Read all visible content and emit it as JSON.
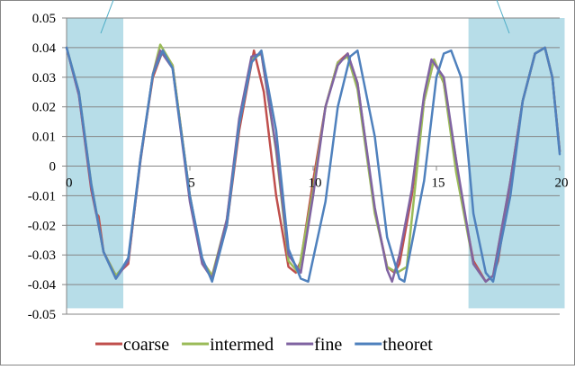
{
  "chart_data": {
    "type": "line",
    "title": "",
    "xlabel": "",
    "ylabel": "",
    "xlim": [
      0,
      20
    ],
    "ylim": [
      -0.05,
      0.05
    ],
    "x_ticks": [
      0,
      5,
      10,
      15,
      20
    ],
    "x_tick_labels": [
      "0",
      "5",
      "10",
      "15",
      "20"
    ],
    "y_ticks": [
      0.05,
      0.04,
      0.03,
      0.02,
      0.01,
      0,
      -0.01,
      -0.02,
      -0.03,
      -0.04,
      -0.05
    ],
    "y_tick_labels": [
      "0.05",
      "0.04",
      "0.03",
      "0.02",
      "0.01",
      "0",
      "-0.01",
      "-0.02",
      "-0.03",
      "-0.04",
      "-0.05"
    ],
    "grid": {
      "horizontal": true,
      "vertical": false
    },
    "legend_position": "bottom",
    "highlight_regions": [
      {
        "x_range": [
          0,
          2.3
        ],
        "y_range": [
          -0.048,
          0.05
        ],
        "color": "#b7dde8"
      },
      {
        "x_range": [
          16.3,
          20.2
        ],
        "y_range": [
          -0.048,
          0.05
        ],
        "color": "#b7dde8"
      }
    ],
    "series": [
      {
        "name": "coarse",
        "color": "#c0504d",
        "x": [
          0.0,
          0.5,
          1.0,
          1.2,
          1.3,
          1.5,
          2.0,
          2.5,
          3.0,
          3.5,
          3.9,
          4.3,
          5.0,
          5.5,
          5.9,
          6.5,
          7.0,
          7.6,
          8.0,
          8.5,
          9.0,
          9.3,
          9.5,
          10.0,
          10.5,
          11.0,
          11.4,
          11.8,
          12.5,
          13.0,
          13.3,
          13.5,
          14.0,
          14.5,
          14.9,
          15.3,
          15.8,
          16.0,
          16.5,
          17.0,
          17.3,
          17.5,
          18.0,
          18.5,
          19.0,
          19.4,
          19.7,
          20.0
        ],
        "y": [
          0.04,
          0.024,
          -0.008,
          -0.016,
          -0.017,
          -0.029,
          -0.037,
          -0.033,
          0.003,
          0.03,
          0.039,
          0.034,
          -0.01,
          -0.032,
          -0.037,
          -0.02,
          0.012,
          0.039,
          0.025,
          -0.01,
          -0.034,
          -0.036,
          -0.032,
          -0.005,
          0.02,
          0.035,
          0.038,
          0.028,
          -0.015,
          -0.034,
          -0.036,
          -0.033,
          -0.01,
          0.022,
          0.036,
          0.028,
          0.002,
          -0.01,
          -0.032,
          -0.039,
          -0.037,
          -0.032,
          -0.005,
          0.022,
          0.038,
          0.04,
          0.03,
          0.005
        ]
      },
      {
        "name": "intermed",
        "color": "#9bbb59",
        "x": [
          0.0,
          0.5,
          1.0,
          1.5,
          2.0,
          2.5,
          3.0,
          3.5,
          3.8,
          4.3,
          5.0,
          5.5,
          5.9,
          6.5,
          7.0,
          7.5,
          7.9,
          8.5,
          9.0,
          9.4,
          10.0,
          10.5,
          11.0,
          11.4,
          11.8,
          12.5,
          13.0,
          13.4,
          13.8,
          14.5,
          14.9,
          15.3,
          15.8,
          16.5,
          17.0,
          17.3,
          18.0,
          18.5,
          19.0,
          19.4,
          19.7,
          20.0
        ],
        "y": [
          0.04,
          0.025,
          -0.006,
          -0.029,
          -0.037,
          -0.032,
          0.002,
          0.031,
          0.041,
          0.034,
          -0.01,
          -0.032,
          -0.037,
          -0.018,
          0.014,
          0.036,
          0.038,
          0.005,
          -0.032,
          -0.036,
          -0.008,
          0.02,
          0.035,
          0.037,
          0.026,
          -0.016,
          -0.034,
          -0.036,
          -0.034,
          0.022,
          0.036,
          0.028,
          -0.002,
          -0.033,
          -0.039,
          -0.037,
          -0.005,
          0.022,
          0.038,
          0.04,
          0.03,
          0.005
        ]
      },
      {
        "name": "fine",
        "color": "#8064a2",
        "x": [
          0.0,
          0.5,
          1.0,
          1.5,
          2.0,
          2.5,
          3.0,
          3.5,
          3.8,
          4.3,
          5.0,
          5.5,
          5.9,
          6.5,
          7.0,
          7.5,
          7.9,
          8.5,
          9.0,
          9.5,
          10.0,
          10.5,
          11.0,
          11.4,
          11.8,
          12.5,
          13.0,
          13.2,
          13.5,
          14.0,
          14.5,
          14.8,
          15.3,
          15.8,
          16.5,
          17.0,
          17.3,
          18.0,
          18.5,
          19.0,
          19.4,
          19.7,
          20.0
        ],
        "y": [
          0.04,
          0.024,
          -0.007,
          -0.029,
          -0.038,
          -0.032,
          0.002,
          0.031,
          0.039,
          0.033,
          -0.012,
          -0.033,
          -0.038,
          -0.018,
          0.016,
          0.037,
          0.038,
          0.006,
          -0.03,
          -0.036,
          -0.01,
          0.02,
          0.034,
          0.038,
          0.028,
          -0.014,
          -0.035,
          -0.039,
          -0.03,
          -0.008,
          0.024,
          0.036,
          0.03,
          0.002,
          -0.033,
          -0.039,
          -0.037,
          -0.005,
          0.022,
          0.038,
          0.04,
          0.03,
          0.005
        ]
      },
      {
        "name": "theoret",
        "color": "#4f81bd",
        "x": [
          0.0,
          0.5,
          1.0,
          1.5,
          2.0,
          2.5,
          3.0,
          3.5,
          3.9,
          4.3,
          5.0,
          5.5,
          5.9,
          6.5,
          7.0,
          7.5,
          7.9,
          8.5,
          9.0,
          9.5,
          9.8,
          10.5,
          11.0,
          11.5,
          11.8,
          12.5,
          13.0,
          13.5,
          13.7,
          14.5,
          15.0,
          15.3,
          15.6,
          16.0,
          16.5,
          17.0,
          17.3,
          18.0,
          18.5,
          19.0,
          19.4,
          19.7,
          20.0
        ],
        "y": [
          0.04,
          0.025,
          -0.006,
          -0.029,
          -0.038,
          -0.031,
          0.003,
          0.031,
          0.039,
          0.033,
          -0.01,
          -0.031,
          -0.039,
          -0.02,
          0.014,
          0.035,
          0.039,
          0.012,
          -0.028,
          -0.038,
          -0.039,
          -0.012,
          0.02,
          0.037,
          0.039,
          0.01,
          -0.024,
          -0.038,
          -0.039,
          -0.005,
          0.03,
          0.038,
          0.039,
          0.03,
          -0.016,
          -0.036,
          -0.039,
          -0.01,
          0.022,
          0.038,
          0.04,
          0.03,
          0.004
        ]
      }
    ]
  }
}
